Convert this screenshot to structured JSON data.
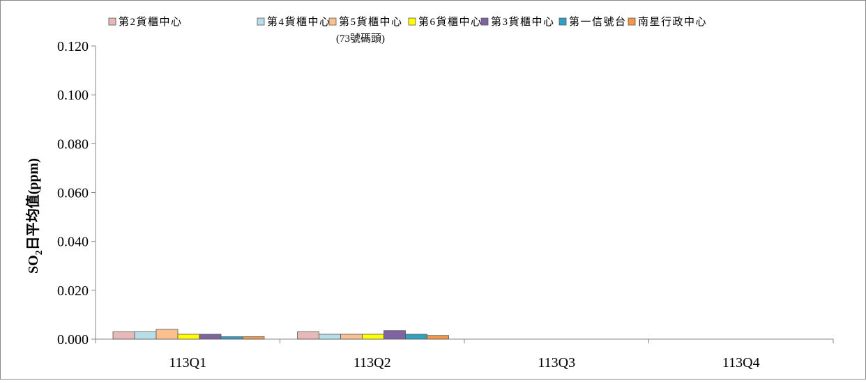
{
  "chart_data": {
    "type": "bar",
    "title": "",
    "xlabel": "",
    "ylabel": {
      "prefix": "SO",
      "subscript": "2",
      "suffix": "日平均值(ppm)"
    },
    "ylim": [
      0,
      0.12
    ],
    "yticks": [
      "0.000",
      "0.020",
      "0.040",
      "0.060",
      "0.080",
      "0.100",
      "0.120"
    ],
    "grid": false,
    "legend_position": "top",
    "categories": [
      "113Q1",
      "113Q2",
      "113Q3",
      "113Q4"
    ],
    "series": [
      {
        "name": "第2貨櫃中心",
        "color": "#E6B9B8",
        "values": [
          0.003,
          0.003,
          null,
          null
        ]
      },
      {
        "name": "第4貨櫃中心",
        "color": "#B7DEE8",
        "values": [
          0.003,
          0.002,
          null,
          null
        ]
      },
      {
        "name": "第5貨櫃中心 (73號碼頭)",
        "color": "#FAC090",
        "values": [
          0.004,
          0.002,
          null,
          null
        ]
      },
      {
        "name": "第6貨櫃中心",
        "color": "#FFFF00",
        "values": [
          0.002,
          0.002,
          null,
          null
        ]
      },
      {
        "name": "第3貨櫃中心",
        "color": "#8064A2",
        "values": [
          0.002,
          0.0035,
          null,
          null
        ]
      },
      {
        "name": "第一信號台",
        "color": "#31A0C0",
        "values": [
          0.001,
          0.002,
          null,
          null
        ]
      },
      {
        "name": "南星行政中心",
        "color": "#F79646",
        "values": [
          0.001,
          0.0015,
          null,
          null
        ]
      }
    ]
  },
  "legend": [
    {
      "line1": "第2貨櫃中心",
      "line2": ""
    },
    {
      "line1": "第4貨櫃中心",
      "line2": ""
    },
    {
      "line1": "第5貨櫃中心",
      "line2": "(73號碼頭)"
    },
    {
      "line1": "第6貨櫃中心",
      "line2": ""
    },
    {
      "line1": "第3貨櫃中心",
      "line2": ""
    },
    {
      "line1": "第一信號台",
      "line2": ""
    },
    {
      "line1": "南星行政中心",
      "line2": ""
    }
  ]
}
